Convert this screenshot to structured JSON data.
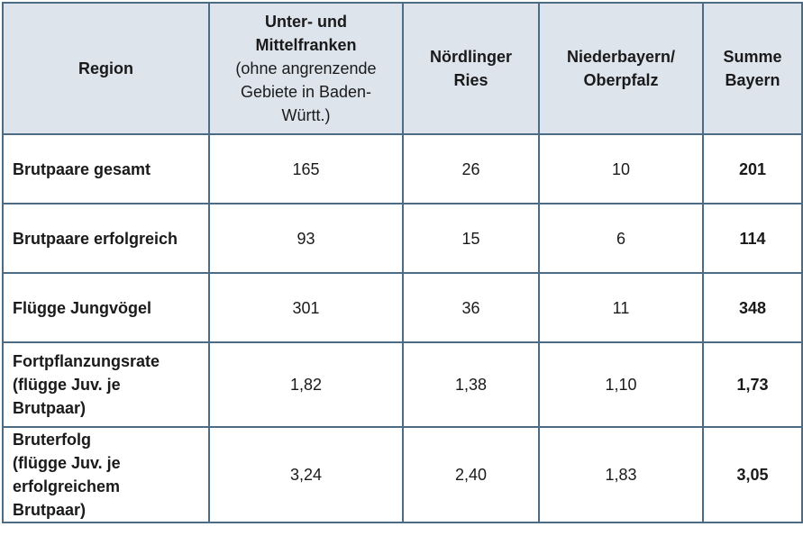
{
  "header": {
    "region": "Region",
    "col1_main": "Unter- und Mittelfranken",
    "col1_sub": "(ohne angrenzende Gebiete in Baden-Württ.)",
    "col2": "Nördlinger Ries",
    "col3": "Niederbayern/ Oberpfalz",
    "col4": "Summe Bayern"
  },
  "rows": [
    {
      "label": "Brutpaare gesamt",
      "v1": "165",
      "v2": "26",
      "v3": "10",
      "sum": "201"
    },
    {
      "label": "Brutpaare erfolgreich",
      "v1": "93",
      "v2": "15",
      "v3": "6",
      "sum": "114"
    },
    {
      "label": "Flügge Jungvögel",
      "v1": "301",
      "v2": "36",
      "v3": "11",
      "sum": "348"
    },
    {
      "label": "Fortpflanzungsrate\n(flügge Juv. je\nBrutpaar)",
      "v1": "1,82",
      "v2": "1,38",
      "v3": "1,10",
      "sum": "1,73"
    },
    {
      "label": "Bruterfolg\n(flügge Juv. je\nerfolgreichem\nBrutpaar)",
      "v1": "3,24",
      "v2": "2,40",
      "v3": "1,83",
      "sum": "3,05"
    }
  ]
}
